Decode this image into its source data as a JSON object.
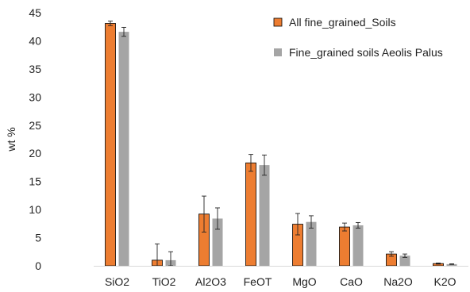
{
  "chart_data": {
    "type": "bar",
    "title": "",
    "xlabel": "",
    "ylabel": "wt %",
    "ylim": [
      0,
      45
    ],
    "yticks": [
      0,
      5,
      10,
      15,
      20,
      25,
      30,
      35,
      40,
      45
    ],
    "grid": false,
    "legend_position": "top-right",
    "categories": [
      "SiO2",
      "TiO2",
      "Al2O3",
      "FeOT",
      "MgO",
      "CaO",
      "Na2O",
      "K2O"
    ],
    "series": [
      {
        "name": "All fine_grained_Soils",
        "color": "#ED7D31",
        "values": [
          43.1,
          1.0,
          9.2,
          18.3,
          7.4,
          6.9,
          2.1,
          0.4
        ],
        "errors": [
          0.4,
          2.9,
          3.2,
          1.5,
          1.9,
          0.7,
          0.4,
          0.1
        ]
      },
      {
        "name": "Fine_grained soils Aeolis Palus",
        "color": "#A5A5A5",
        "values": [
          41.6,
          1.0,
          8.4,
          17.9,
          7.8,
          7.2,
          1.8,
          0.3
        ],
        "errors": [
          0.8,
          1.5,
          1.9,
          1.8,
          1.1,
          0.5,
          0.3,
          0.05
        ]
      }
    ]
  }
}
